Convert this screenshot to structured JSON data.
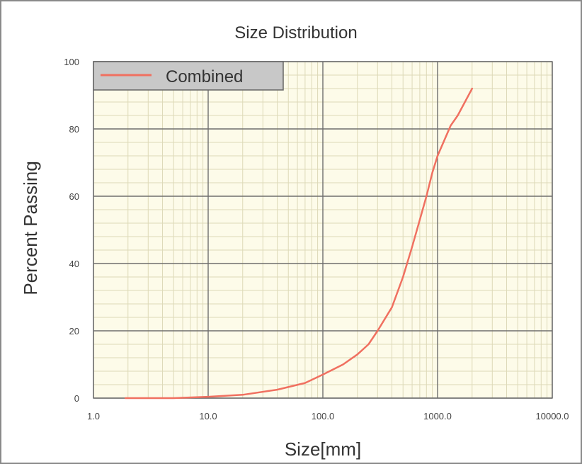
{
  "chart_data": {
    "type": "line",
    "title": "Size Distribution",
    "xlabel": "Size[mm]",
    "ylabel": "Percent Passing",
    "x_scale": "log",
    "xlim": [
      1,
      10000
    ],
    "ylim": [
      0,
      100
    ],
    "x_ticks": [
      1,
      10,
      100,
      1000,
      10000
    ],
    "x_tick_labels": [
      "1.0",
      "10.0",
      "100.0",
      "1000.0",
      "10000.0"
    ],
    "y_ticks": [
      0,
      20,
      40,
      60,
      80,
      100
    ],
    "y_tick_labels": [
      "0",
      "20",
      "40",
      "60",
      "80",
      "100"
    ],
    "grid": true,
    "legend_position": "top-left",
    "series": [
      {
        "name": "Combined",
        "color": "#f07060",
        "x": [
          1.9,
          5,
          10,
          20,
          40,
          70,
          100,
          150,
          200,
          250,
          300,
          400,
          500,
          600,
          700,
          800,
          900,
          1000,
          1300,
          1500,
          2000
        ],
        "y": [
          0,
          0,
          0.4,
          1,
          2.5,
          4.5,
          7,
          10,
          13,
          16,
          20,
          27,
          36,
          45,
          53,
          60,
          67,
          72,
          81,
          84,
          92
        ]
      }
    ]
  }
}
